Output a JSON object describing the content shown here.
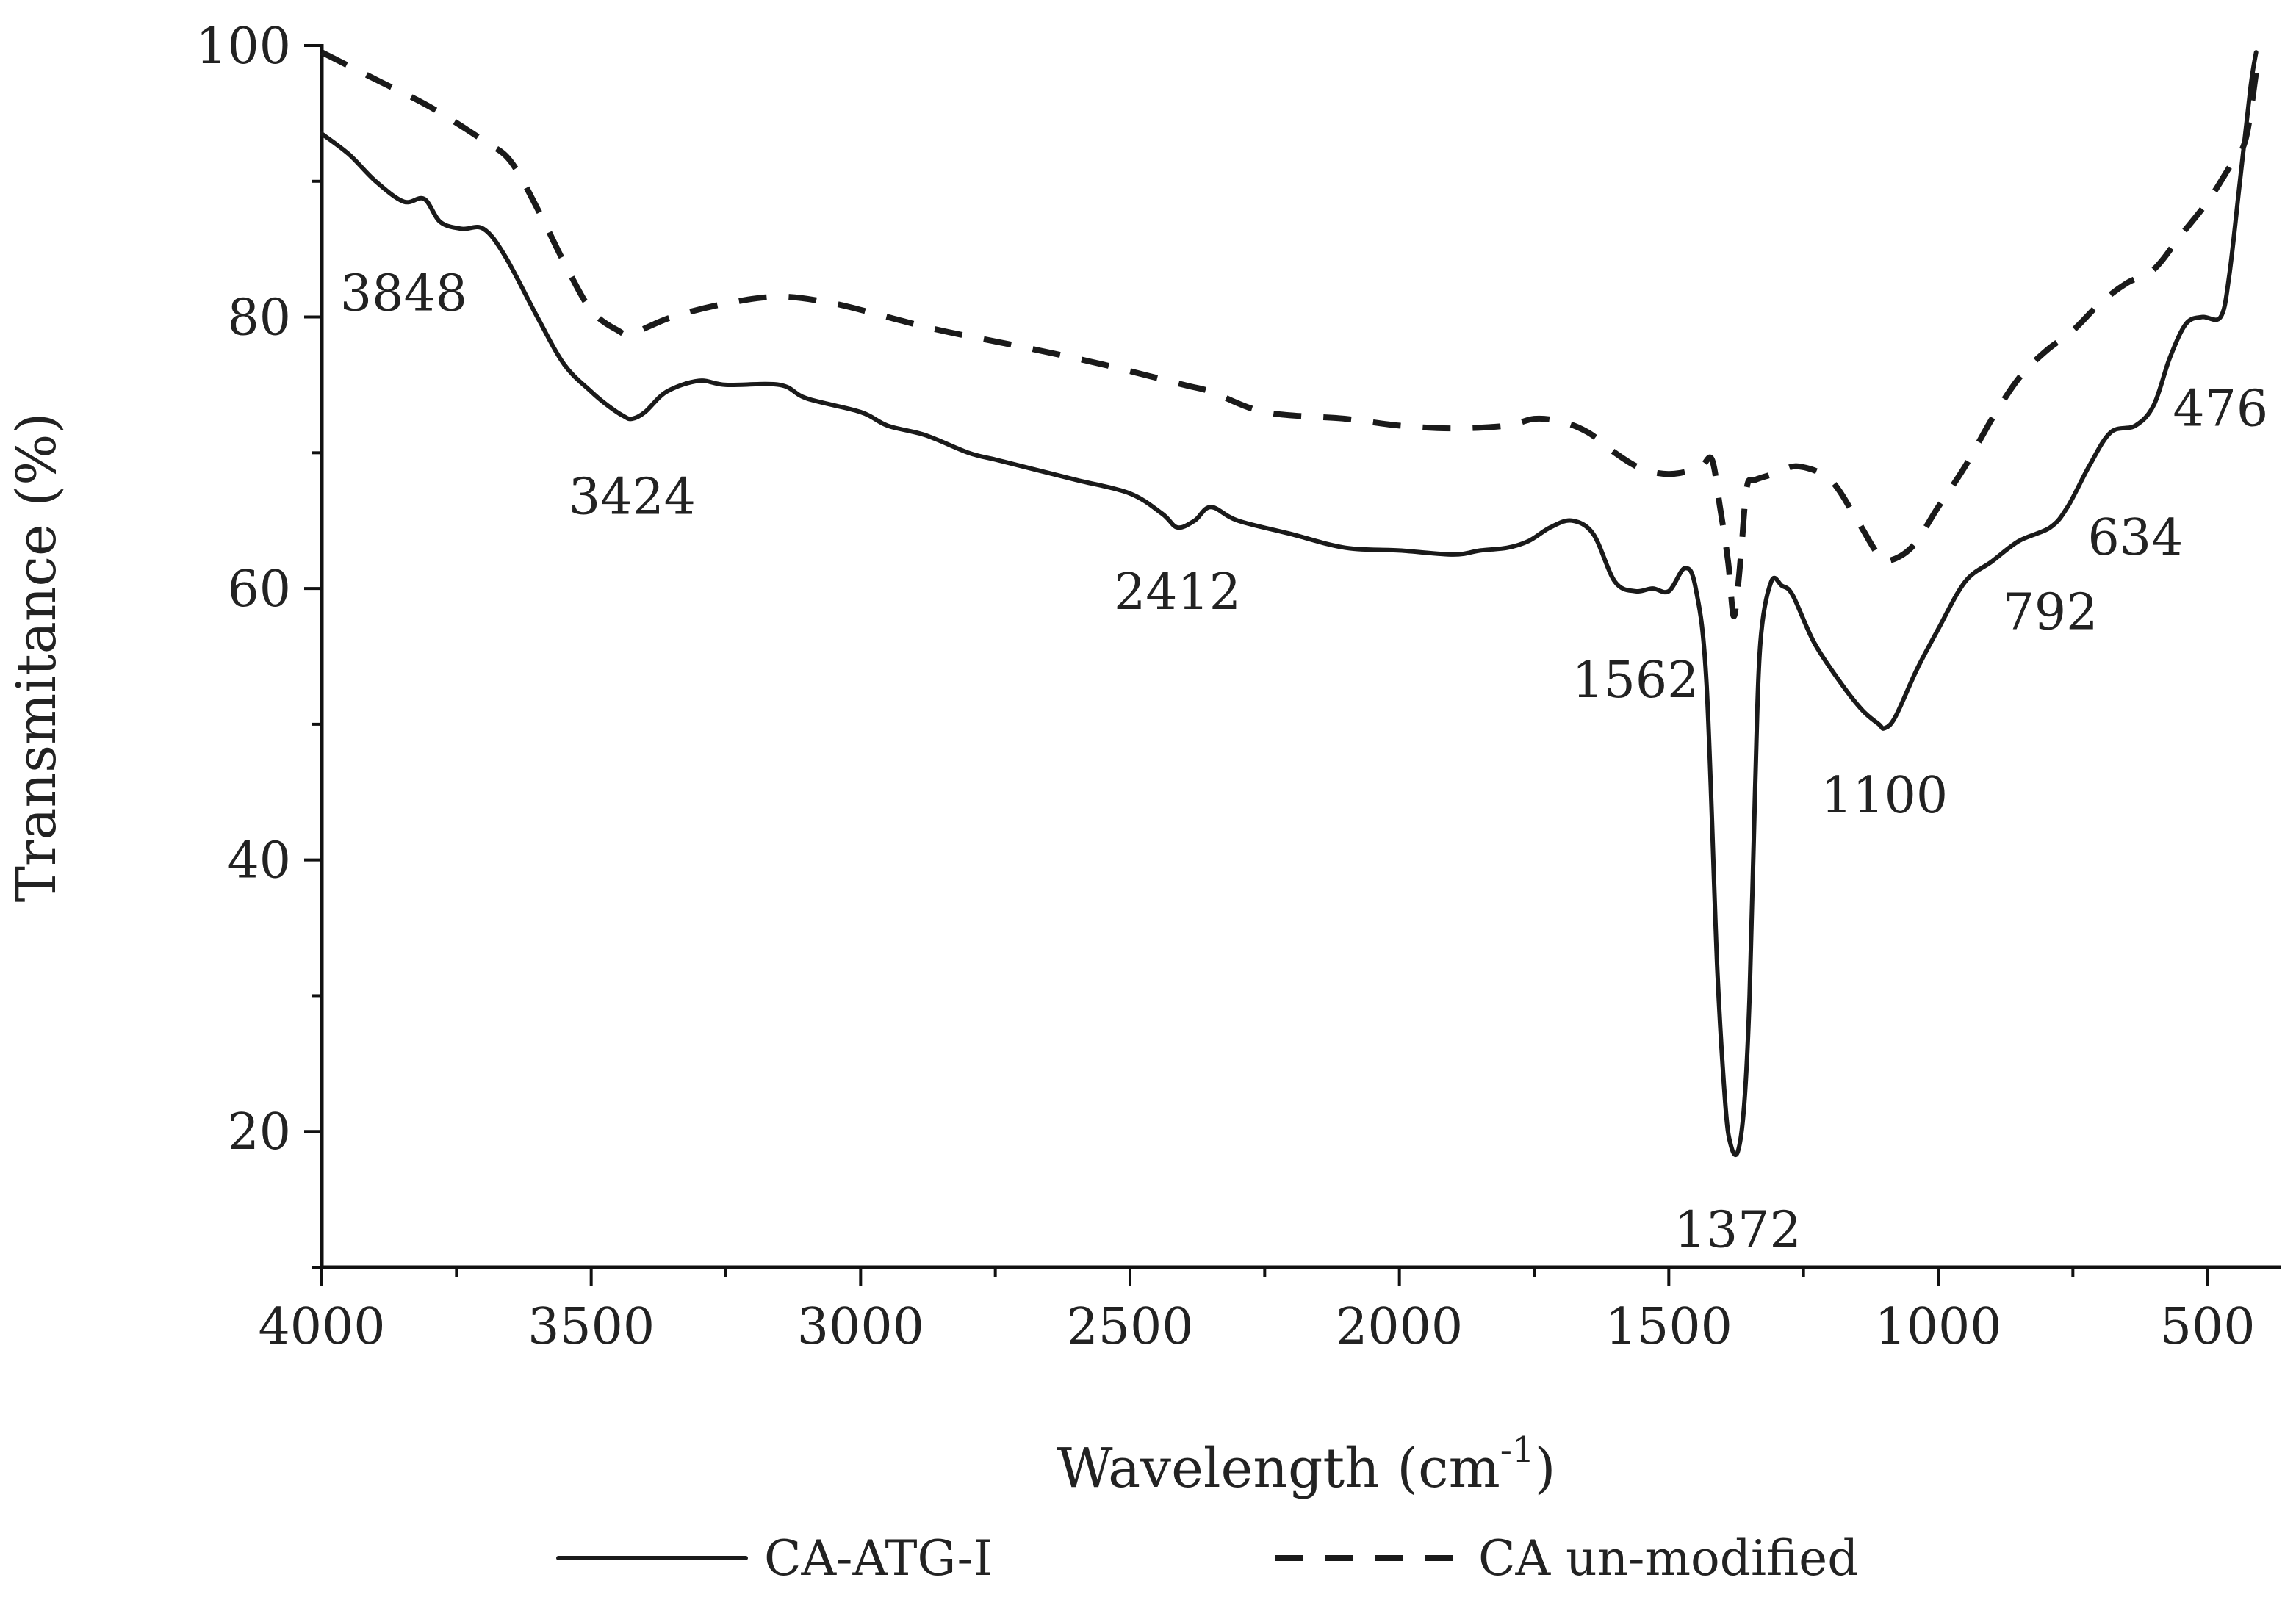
{
  "chart_data": {
    "type": "line",
    "title": "",
    "xlabel": "Wavelength (cm",
    "xlabel_superscript": "-1",
    "xlabel_suffix": ")",
    "ylabel": "Transmitance (%)",
    "xlim": [
      4000,
      400
    ],
    "ylim": [
      10,
      100
    ],
    "x_reversed": true,
    "x_ticks": [
      4000,
      3500,
      3000,
      2500,
      2000,
      1500,
      1000,
      500
    ],
    "x_tick_labels": [
      "4000",
      "3500",
      "3000",
      "2500",
      "2000",
      "1500",
      "1000",
      "500"
    ],
    "y_ticks": [
      20,
      40,
      60,
      80,
      100
    ],
    "y_tick_labels": [
      "20",
      "40",
      "60",
      "80",
      "100"
    ],
    "y_minor_ticks": [
      10,
      30,
      50,
      70,
      90
    ],
    "legend_position": "bottom",
    "series": [
      {
        "name": "CA-ATG-I",
        "style": "solid",
        "x": [
          4000,
          3950,
          3900,
          3848,
          3810,
          3780,
          3740,
          3700,
          3660,
          3600,
          3550,
          3500,
          3470,
          3440,
          3424,
          3400,
          3360,
          3300,
          3250,
          3150,
          3100,
          3000,
          2950,
          2880,
          2800,
          2750,
          2700,
          2600,
          2500,
          2440,
          2412,
          2380,
          2350,
          2300,
          2200,
          2100,
          2000,
          1900,
          1850,
          1800,
          1760,
          1720,
          1680,
          1640,
          1600,
          1562,
          1530,
          1500,
          1470,
          1450,
          1430,
          1410,
          1395,
          1385,
          1372,
          1360,
          1350,
          1340,
          1330,
          1310,
          1290,
          1270,
          1230,
          1180,
          1140,
          1110,
          1100,
          1080,
          1040,
          1000,
          950,
          900,
          850,
          792,
          760,
          720,
          680,
          634,
          600,
          570,
          540,
          510,
          476,
          460,
          440,
          420,
          410
        ],
        "y": [
          93.5,
          92,
          90,
          88.5,
          88.7,
          87,
          86.5,
          86.5,
          84.5,
          80,
          76.5,
          74.5,
          73.5,
          72.7,
          72.5,
          73,
          74.5,
          75.3,
          75,
          75,
          74,
          73,
          72,
          71.3,
          70,
          69.5,
          69,
          68,
          67,
          65.5,
          64.5,
          65,
          66,
          65,
          64,
          63,
          62.8,
          62.5,
          62.8,
          63,
          63.5,
          64.5,
          65,
          64,
          60.5,
          59.8,
          60,
          59.8,
          61.5,
          60,
          53,
          32,
          22,
          19,
          18.5,
          22,
          30,
          45,
          56,
          60.5,
          60.2,
          59.5,
          56,
          53,
          51,
          50,
          49.7,
          50.5,
          54,
          57,
          60.5,
          62,
          63.5,
          64.5,
          66,
          69,
          71.5,
          72,
          73.5,
          77,
          79.5,
          80,
          80,
          83,
          90,
          97,
          99.5
        ]
      },
      {
        "name": "CA un-modified",
        "style": "dashed",
        "x": [
          4000,
          3900,
          3800,
          3700,
          3650,
          3600,
          3550,
          3500,
          3450,
          3424,
          3350,
          3250,
          3150,
          3050,
          2950,
          2850,
          2700,
          2550,
          2400,
          2350,
          2250,
          2100,
          2000,
          1900,
          1800,
          1750,
          1700,
          1650,
          1600,
          1560,
          1520,
          1480,
          1440,
          1420,
          1405,
          1390,
          1380,
          1372,
          1365,
          1355,
          1340,
          1300,
          1260,
          1200,
          1150,
          1120,
          1100,
          1050,
          1000,
          950,
          900,
          850,
          800,
          750,
          700,
          650,
          600,
          550,
          500,
          460,
          430,
          410
        ],
        "y": [
          99.5,
          97.5,
          95.5,
          93,
          91.5,
          88,
          84,
          80.5,
          79,
          78.8,
          80,
          81,
          81.5,
          81,
          80,
          79,
          77.8,
          76.5,
          75,
          74.5,
          73,
          72.5,
          72,
          71.8,
          72,
          72.5,
          72.3,
          71.5,
          70,
          69,
          68.5,
          68.5,
          69,
          69.5,
          66,
          62,
          58,
          60,
          63,
          67.5,
          68,
          68.5,
          69,
          68,
          65,
          63,
          62,
          63,
          66,
          69,
          72.5,
          75.5,
          77.5,
          79,
          81,
          82.5,
          83.5,
          86,
          88.5,
          91,
          93,
          98
        ]
      }
    ],
    "annotations": [
      {
        "text": "3848",
        "x": 3848,
        "y": 80.5
      },
      {
        "text": "3424",
        "x": 3424,
        "y": 65.5
      },
      {
        "text": "2412",
        "x": 2412,
        "y": 58.5
      },
      {
        "text": "1562",
        "x": 1562,
        "y": 52
      },
      {
        "text": "1372",
        "x": 1372,
        "y": 11.5
      },
      {
        "text": "1100",
        "x": 1100,
        "y": 43.5
      },
      {
        "text": "792",
        "x": 792,
        "y": 57
      },
      {
        "text": "634",
        "x": 634,
        "y": 62.5
      },
      {
        "text": "476",
        "x": 476,
        "y": 72
      }
    ]
  }
}
